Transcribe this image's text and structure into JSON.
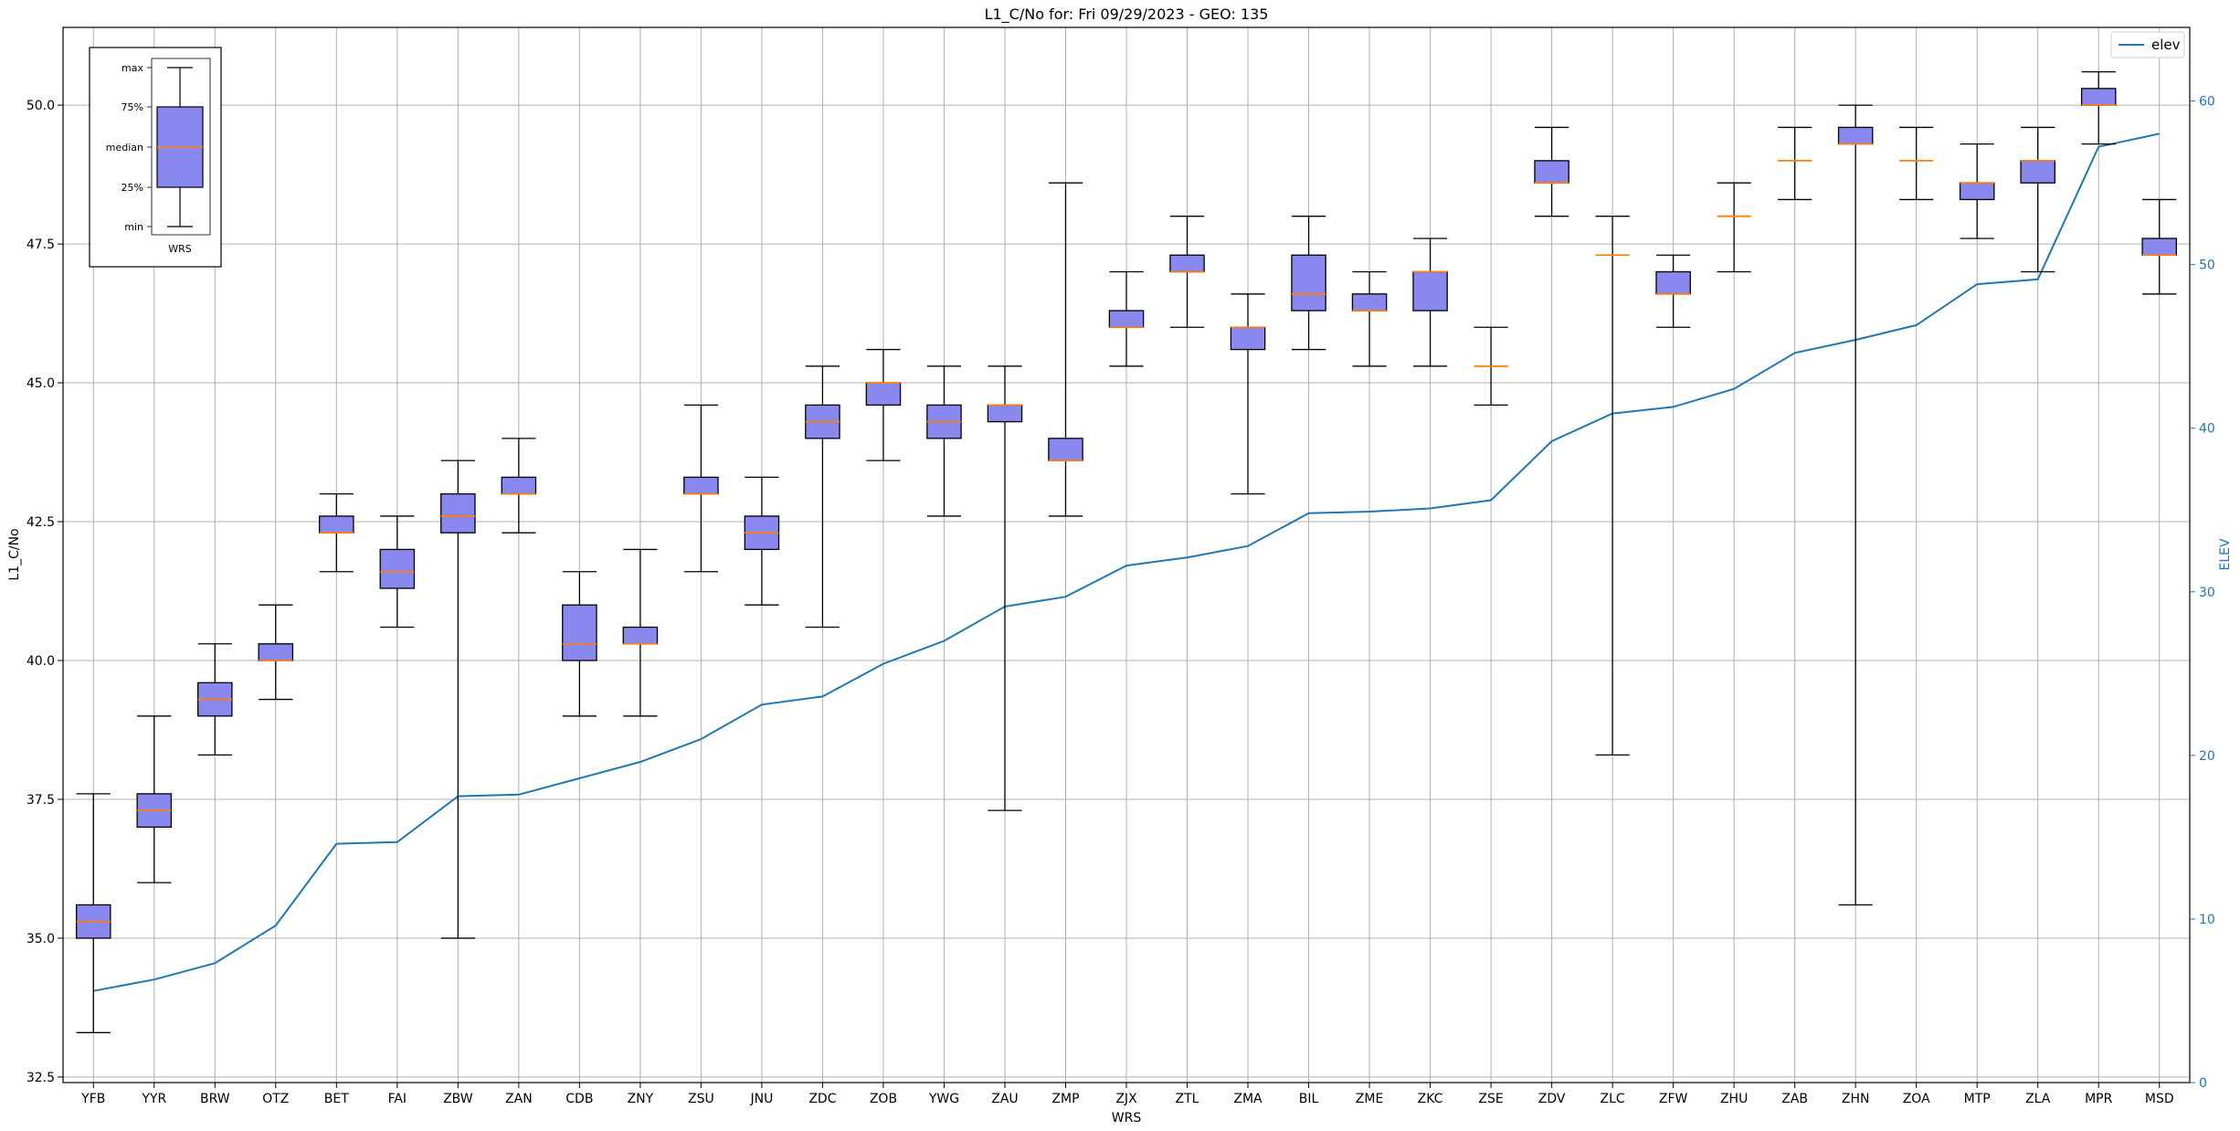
{
  "chart_data": {
    "type": "box",
    "title": "L1_C/No for: Fri 09/29/2023 - GEO: 135",
    "xlabel": "WRS",
    "ylabel": "L1_C/No",
    "y2label": "ELEV",
    "ylim": [
      32.4,
      51.4
    ],
    "y2lim": [
      0,
      64.5
    ],
    "yticks": [
      "32.5",
      "35.0",
      "37.5",
      "40.0",
      "42.5",
      "45.0",
      "47.5",
      "50.0"
    ],
    "y2ticks": [
      "0",
      "10",
      "20",
      "30",
      "40",
      "50",
      "60"
    ],
    "grid": true,
    "legend_position": "top-right",
    "colors": {
      "box_fill": "#8888ee",
      "median": "#ff7f0e",
      "elev_line": "#1f77b4",
      "axis_right": "#1f77b4"
    },
    "categories": [
      "YFB",
      "YYR",
      "BRW",
      "OTZ",
      "BET",
      "FAI",
      "ZBW",
      "ZAN",
      "CDB",
      "ZNY",
      "ZSU",
      "JNU",
      "ZDC",
      "ZOB",
      "YWG",
      "ZAU",
      "ZMP",
      "ZJX",
      "ZTL",
      "ZMA",
      "BIL",
      "ZME",
      "ZKC",
      "ZSE",
      "ZDV",
      "ZLC",
      "ZFW",
      "ZHU",
      "ZAB",
      "ZHN",
      "ZOA",
      "MTP",
      "ZLA",
      "MPR",
      "MSD"
    ],
    "boxes": [
      {
        "min": 33.3,
        "q1": 35.0,
        "median": 35.3,
        "q3": 35.6,
        "max": 37.6
      },
      {
        "min": 36.0,
        "q1": 37.0,
        "median": 37.3,
        "q3": 37.6,
        "max": 39.0
      },
      {
        "min": 38.3,
        "q1": 39.0,
        "median": 39.3,
        "q3": 39.6,
        "max": 40.3
      },
      {
        "min": 39.3,
        "q1": 40.0,
        "median": 40.0,
        "q3": 40.3,
        "max": 41.0
      },
      {
        "min": 41.6,
        "q1": 42.3,
        "median": 42.3,
        "q3": 42.6,
        "max": 43.0
      },
      {
        "min": 40.6,
        "q1": 41.3,
        "median": 41.6,
        "q3": 42.0,
        "max": 42.6
      },
      {
        "min": 35.0,
        "q1": 42.3,
        "median": 42.6,
        "q3": 43.0,
        "max": 43.6
      },
      {
        "min": 42.3,
        "q1": 43.0,
        "median": 43.0,
        "q3": 43.3,
        "max": 44.0
      },
      {
        "min": 39.0,
        "q1": 40.0,
        "median": 40.3,
        "q3": 41.0,
        "max": 41.6
      },
      {
        "min": 39.0,
        "q1": 40.3,
        "median": 40.3,
        "q3": 40.6,
        "max": 42.0
      },
      {
        "min": 41.6,
        "q1": 43.0,
        "median": 43.0,
        "q3": 43.3,
        "max": 44.6
      },
      {
        "min": 41.0,
        "q1": 42.0,
        "median": 42.3,
        "q3": 42.6,
        "max": 43.3
      },
      {
        "min": 40.6,
        "q1": 44.0,
        "median": 44.3,
        "q3": 44.6,
        "max": 45.3
      },
      {
        "min": 43.6,
        "q1": 44.6,
        "median": 45.0,
        "q3": 45.0,
        "max": 45.6
      },
      {
        "min": 42.6,
        "q1": 44.0,
        "median": 44.3,
        "q3": 44.6,
        "max": 45.3
      },
      {
        "min": 37.3,
        "q1": 44.3,
        "median": 44.6,
        "q3": 44.6,
        "max": 45.3
      },
      {
        "min": 42.6,
        "q1": 43.6,
        "median": 43.6,
        "q3": 44.0,
        "max": 48.6
      },
      {
        "min": 45.3,
        "q1": 46.0,
        "median": 46.0,
        "q3": 46.3,
        "max": 47.0
      },
      {
        "min": 46.0,
        "q1": 47.0,
        "median": 47.0,
        "q3": 47.3,
        "max": 48.0
      },
      {
        "min": 43.0,
        "q1": 45.6,
        "median": 46.0,
        "q3": 46.0,
        "max": 46.6
      },
      {
        "min": 45.6,
        "q1": 46.3,
        "median": 46.6,
        "q3": 47.3,
        "max": 48.0
      },
      {
        "min": 45.3,
        "q1": 46.3,
        "median": 46.3,
        "q3": 46.6,
        "max": 47.0
      },
      {
        "min": 45.3,
        "q1": 46.3,
        "median": 47.0,
        "q3": 47.0,
        "max": 47.6
      },
      {
        "min": 44.6,
        "q1": 45.3,
        "median": 45.3,
        "q3": 45.3,
        "max": 46.0
      },
      {
        "min": 48.0,
        "q1": 48.6,
        "median": 48.6,
        "q3": 49.0,
        "max": 49.6
      },
      {
        "min": 38.3,
        "q1": 47.3,
        "median": 47.3,
        "q3": 47.3,
        "max": 48.0
      },
      {
        "min": 46.0,
        "q1": 46.6,
        "median": 46.6,
        "q3": 47.0,
        "max": 47.3
      },
      {
        "min": 47.0,
        "q1": 48.0,
        "median": 48.0,
        "q3": 48.0,
        "max": 48.6
      },
      {
        "min": 48.3,
        "q1": 49.0,
        "median": 49.0,
        "q3": 49.0,
        "max": 49.6
      },
      {
        "min": 35.6,
        "q1": 49.3,
        "median": 49.3,
        "q3": 49.6,
        "max": 50.0
      },
      {
        "min": 48.3,
        "q1": 49.0,
        "median": 49.0,
        "q3": 49.0,
        "max": 49.6
      },
      {
        "min": 47.6,
        "q1": 48.3,
        "median": 48.6,
        "q3": 48.6,
        "max": 49.3
      },
      {
        "min": 47.0,
        "q1": 48.6,
        "median": 49.0,
        "q3": 49.0,
        "max": 49.6
      },
      {
        "min": 49.3,
        "q1": 50.0,
        "median": 50.0,
        "q3": 50.3,
        "max": 50.6
      },
      {
        "min": 46.6,
        "q1": 47.3,
        "median": 47.3,
        "q3": 47.6,
        "max": 48.3
      }
    ],
    "series": [
      {
        "name": "elev",
        "axis": "right",
        "values": [
          5.6,
          6.3,
          7.3,
          9.6,
          14.6,
          14.7,
          17.5,
          17.6,
          18.6,
          19.6,
          21.0,
          23.1,
          23.6,
          25.6,
          27.0,
          29.1,
          29.7,
          31.6,
          32.1,
          32.8,
          34.8,
          34.9,
          35.1,
          35.6,
          39.2,
          40.9,
          41.3,
          42.4,
          44.6,
          45.4,
          46.3,
          48.8,
          49.1,
          57.2,
          58.0
        ]
      }
    ],
    "key_inset": {
      "labels": [
        "max",
        "75%",
        "median",
        "25%",
        "min"
      ],
      "xlabel": "WRS"
    }
  }
}
